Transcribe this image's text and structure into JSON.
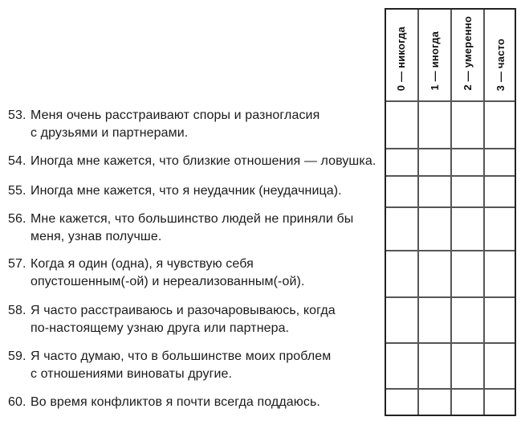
{
  "table": {
    "headers": [
      "0 — никогда",
      "1 — иногда",
      "2 — умеренно",
      "3 — часто"
    ]
  },
  "questions": [
    {
      "number": "53.",
      "text": "Меня очень расстраивают споры и разногласия\nс друзьями и партнерами."
    },
    {
      "number": "54.",
      "text": "Иногда мне кажется, что близкие отношения — ловушка."
    },
    {
      "number": "55.",
      "text": "Иногда мне кажется, что я неудачник (неудачница)."
    },
    {
      "number": "56.",
      "text": "Мне кажется, что большинство людей не приняли бы\nменя, узнав получше."
    },
    {
      "number": "57.",
      "text": "Когда я один (одна), я чувствую себя\nопустошенным(-ой) и нереализованным(-ой)."
    },
    {
      "number": "58.",
      "text": "Я часто расстраиваюсь и разочаровываюсь, когда\nпо-настоящему узнаю друга или партнера."
    },
    {
      "number": "59.",
      "text": "Я часто думаю, что в большинстве моих проблем\nс отношениями виноваты другие."
    },
    {
      "number": "60.",
      "text": "Во время конфликтов я почти всегда поддаюсь."
    }
  ]
}
